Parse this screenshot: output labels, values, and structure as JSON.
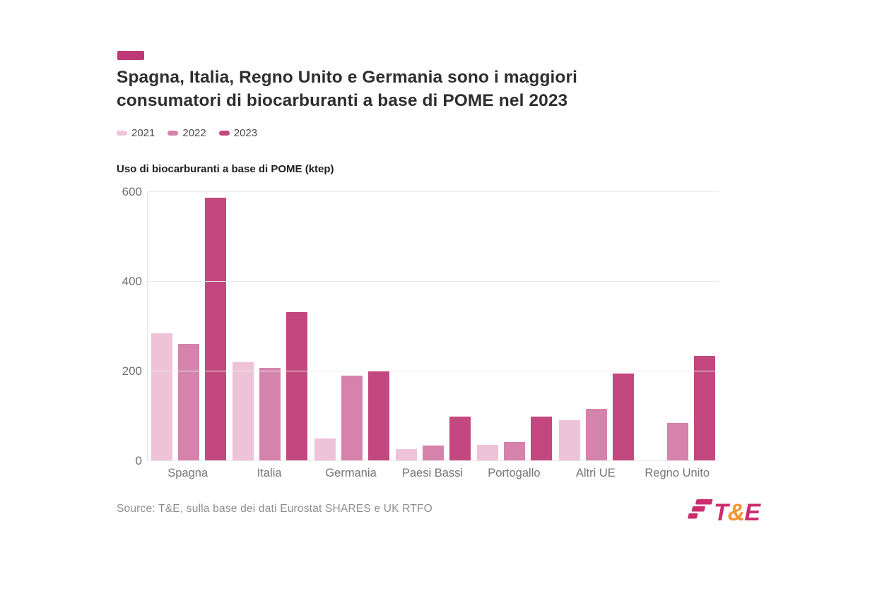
{
  "accent_color": "#bd3a76",
  "header": {
    "title_line1": "Spagna, Italia, Regno Unito e Germania sono i maggiori",
    "title_line2": "consumatori di biocarburanti a base di POME nel 2023"
  },
  "chart_data": {
    "type": "bar",
    "title": "Uso di biocarburanti a base di POME (ktep)",
    "categories": [
      "Spagna",
      "Italia",
      "Germania",
      "Paesi Bassi",
      "Portogallo",
      "Altri UE",
      "Regno Unito"
    ],
    "series": [
      {
        "name": "2021",
        "color": "#eec3d8",
        "values": [
          285,
          220,
          50,
          27,
          37,
          92,
          0
        ]
      },
      {
        "name": "2022",
        "color": "#d583ac",
        "values": [
          262,
          208,
          190,
          35,
          43,
          117,
          85
        ]
      },
      {
        "name": "2023",
        "color": "#c3487f",
        "values": [
          588,
          332,
          202,
          100,
          100,
          195,
          235
        ]
      }
    ],
    "ylabel": "",
    "xlabel": "",
    "ylim": [
      0,
      600
    ],
    "yticks": [
      0,
      200,
      400,
      600
    ],
    "grid": true,
    "legend_position": "top-left"
  },
  "footer": {
    "source": "Source: T&E, sulla base dei dati Eurostat SHARES e UK RTFO",
    "logo": {
      "t": "T",
      "amp": "&",
      "e": "E",
      "magenta": "#cb2d6e",
      "orange": "#f59331"
    }
  }
}
